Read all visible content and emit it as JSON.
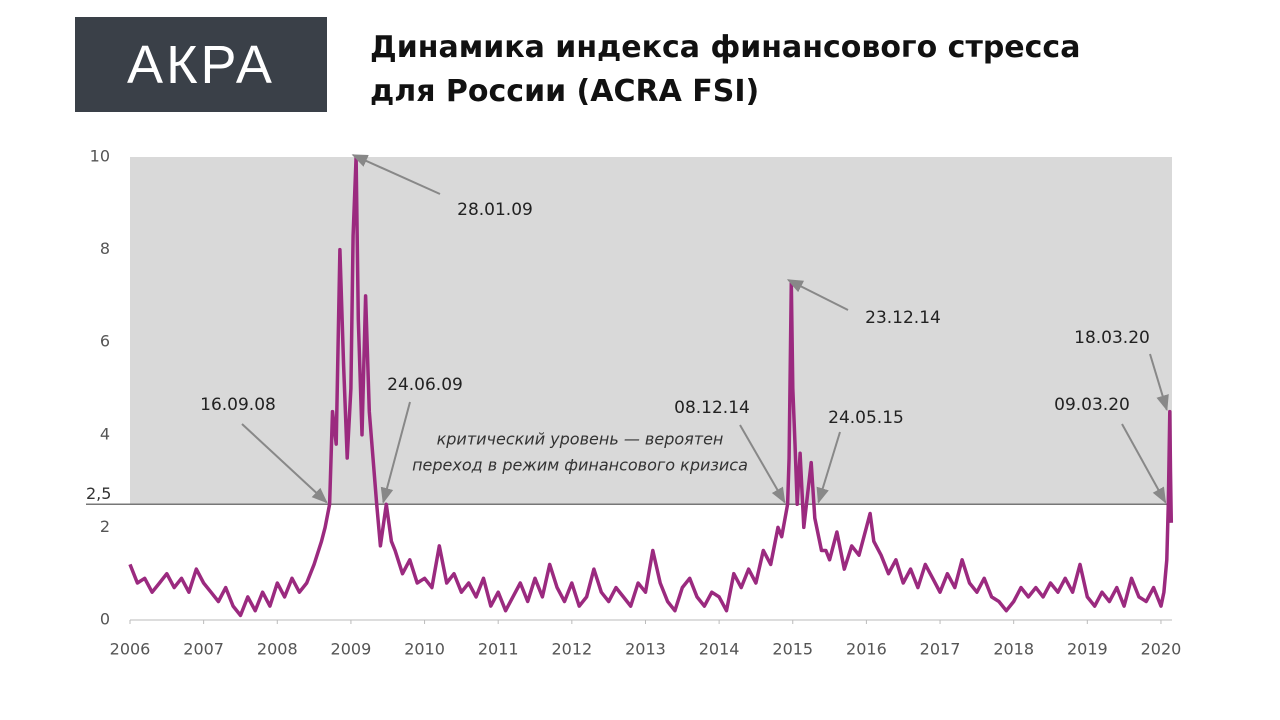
{
  "logo": "АКРА",
  "chart_data": {
    "type": "line",
    "title": [
      "Динамика индекса финансового стресса",
      "для России (ACRA FSI)"
    ],
    "x": [
      2006.0,
      2006.1,
      2006.2,
      2006.3,
      2006.4,
      2006.5,
      2006.6,
      2006.7,
      2006.8,
      2006.9,
      2007.0,
      2007.1,
      2007.2,
      2007.3,
      2007.4,
      2007.5,
      2007.6,
      2007.7,
      2007.8,
      2007.9,
      2008.0,
      2008.1,
      2008.2,
      2008.3,
      2008.4,
      2008.5,
      2008.6,
      2008.65,
      2008.71,
      2008.75,
      2008.8,
      2008.85,
      2008.9,
      2008.95,
      2009.0,
      2009.03,
      2009.07,
      2009.1,
      2009.15,
      2009.2,
      2009.25,
      2009.3,
      2009.35,
      2009.4,
      2009.48,
      2009.55,
      2009.6,
      2009.7,
      2009.8,
      2009.9,
      2010.0,
      2010.1,
      2010.2,
      2010.3,
      2010.4,
      2010.5,
      2010.6,
      2010.7,
      2010.8,
      2010.9,
      2011.0,
      2011.1,
      2011.2,
      2011.3,
      2011.4,
      2011.5,
      2011.6,
      2011.7,
      2011.8,
      2011.9,
      2012.0,
      2012.1,
      2012.2,
      2012.3,
      2012.4,
      2012.5,
      2012.6,
      2012.7,
      2012.8,
      2012.9,
      2013.0,
      2013.1,
      2013.2,
      2013.3,
      2013.4,
      2013.5,
      2013.6,
      2013.7,
      2013.8,
      2013.9,
      2014.0,
      2014.1,
      2014.2,
      2014.3,
      2014.4,
      2014.5,
      2014.6,
      2014.7,
      2014.8,
      2014.85,
      2014.93,
      2014.95,
      2014.98,
      2015.0,
      2015.03,
      2015.06,
      2015.1,
      2015.15,
      2015.25,
      2015.3,
      2015.39,
      2015.45,
      2015.5,
      2015.6,
      2015.7,
      2015.8,
      2015.9,
      2016.0,
      2016.05,
      2016.1,
      2016.2,
      2016.3,
      2016.4,
      2016.5,
      2016.6,
      2016.7,
      2016.8,
      2016.9,
      2017.0,
      2017.1,
      2017.2,
      2017.3,
      2017.4,
      2017.5,
      2017.6,
      2017.7,
      2017.8,
      2017.9,
      2018.0,
      2018.1,
      2018.2,
      2018.3,
      2018.4,
      2018.5,
      2018.6,
      2018.7,
      2018.8,
      2018.9,
      2019.0,
      2019.1,
      2019.2,
      2019.3,
      2019.4,
      2019.5,
      2019.6,
      2019.7,
      2019.8,
      2019.9,
      2020.0,
      2020.04,
      2020.08,
      2020.1,
      2020.12,
      2020.13,
      2020.14
    ],
    "values": [
      1.2,
      0.8,
      0.9,
      0.6,
      0.8,
      1.0,
      0.7,
      0.9,
      0.6,
      1.1,
      0.8,
      0.6,
      0.4,
      0.7,
      0.3,
      0.1,
      0.5,
      0.2,
      0.6,
      0.3,
      0.8,
      0.5,
      0.9,
      0.6,
      0.8,
      1.2,
      1.7,
      2.0,
      2.5,
      4.5,
      3.8,
      8.0,
      5.5,
      3.5,
      5.0,
      8.3,
      10.0,
      6.5,
      4.0,
      7.0,
      4.5,
      3.5,
      2.5,
      1.6,
      2.5,
      1.7,
      1.5,
      1.0,
      1.3,
      0.8,
      0.9,
      0.7,
      1.6,
      0.8,
      1.0,
      0.6,
      0.8,
      0.5,
      0.9,
      0.3,
      0.6,
      0.2,
      0.5,
      0.8,
      0.4,
      0.9,
      0.5,
      1.2,
      0.7,
      0.4,
      0.8,
      0.3,
      0.5,
      1.1,
      0.6,
      0.4,
      0.7,
      0.5,
      0.3,
      0.8,
      0.6,
      1.5,
      0.8,
      0.4,
      0.2,
      0.7,
      0.9,
      0.5,
      0.3,
      0.6,
      0.5,
      0.2,
      1.0,
      0.7,
      1.1,
      0.8,
      1.5,
      1.2,
      2.0,
      1.8,
      2.5,
      3.5,
      7.3,
      5.0,
      3.8,
      2.5,
      3.6,
      2.0,
      3.4,
      2.2,
      1.5,
      1.5,
      1.3,
      1.9,
      1.1,
      1.6,
      1.4,
      2.0,
      2.3,
      1.7,
      1.4,
      1.0,
      1.3,
      0.8,
      1.1,
      0.7,
      1.2,
      0.9,
      0.6,
      1.0,
      0.7,
      1.3,
      0.8,
      0.6,
      0.9,
      0.5,
      0.4,
      0.2,
      0.4,
      0.7,
      0.5,
      0.7,
      0.5,
      0.8,
      0.6,
      0.9,
      0.6,
      1.2,
      0.5,
      0.3,
      0.6,
      0.4,
      0.7,
      0.3,
      0.9,
      0.5,
      0.4,
      0.7,
      0.3,
      0.6,
      1.3,
      2.5,
      4.5,
      3.2,
      2.1
    ],
    "color": "#9b2a7f",
    "xlim": [
      2006,
      2020.15
    ],
    "xticks": [
      2006,
      2007,
      2008,
      2009,
      2010,
      2011,
      2012,
      2013,
      2014,
      2015,
      2016,
      2017,
      2018,
      2019,
      2020
    ],
    "ylim": [
      0,
      10
    ],
    "yticks": [
      0,
      2,
      {
        "value": 2.5,
        "label": "2,5"
      },
      4,
      6,
      8,
      10
    ],
    "reference_label": [
      "критический уровень — вероятен",
      "переход в режим финансового кризиса"
    ],
    "annotations": [
      {
        "text": "16.09.08",
        "x": 2008.71,
        "y": 2.5
      },
      {
        "text": "28.01.09",
        "x": 2009.07,
        "y": 10
      },
      {
        "text": "24.06.09",
        "x": 2009.48,
        "y": 2.5
      },
      {
        "text": "08.12.14",
        "x": 2014.93,
        "y": 2.5
      },
      {
        "text": "23.12.14",
        "x": 2014.98,
        "y": 7.3
      },
      {
        "text": "24.05.15",
        "x": 2015.39,
        "y": 2.5
      },
      {
        "text": "09.03.20",
        "x": 2020.1,
        "y": 2.5
      },
      {
        "text": "18.03.20",
        "x": 2020.12,
        "y": 4.5
      }
    ]
  }
}
